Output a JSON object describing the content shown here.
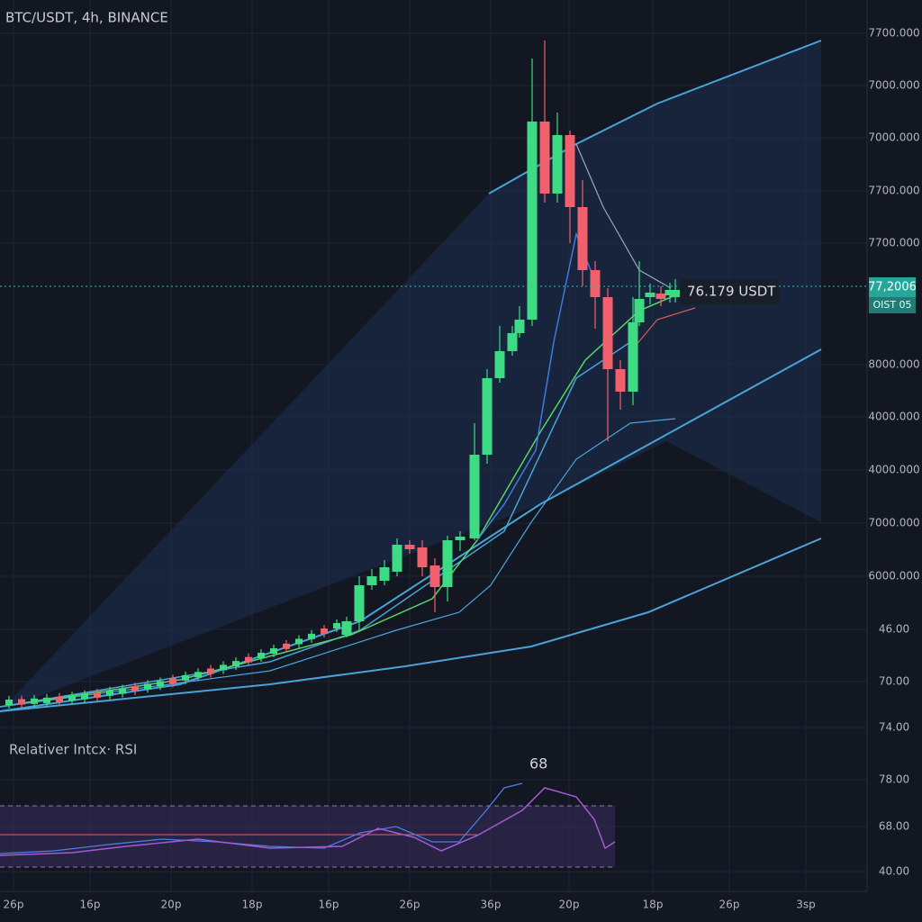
{
  "header": {
    "title": "BTC/USDT, 4h, BINANCE"
  },
  "price_axis": [
    "77​00.000",
    "7000.000",
    "7000.000",
    "77​00.000",
    "77​00.000",
    "8000.000",
    "4000.000",
    "4000.000",
    "7000.000",
    "6000.000",
    "46.00",
    "70.00",
    "74.00",
    "78.00",
    "68.00",
    "40.00"
  ],
  "current_price": {
    "axis_label": "77,2006",
    "sub_label": "OIST 05",
    "tag": "76.179 USDT"
  },
  "rsi": {
    "title": "Relativer Intcx· RSI",
    "peak": "68"
  },
  "time_axis": [
    "26p",
    "16p",
    "20p",
    "18p",
    "16p",
    "26p",
    "36p",
    "20p",
    "18p",
    "26p",
    "3sp"
  ]
}
